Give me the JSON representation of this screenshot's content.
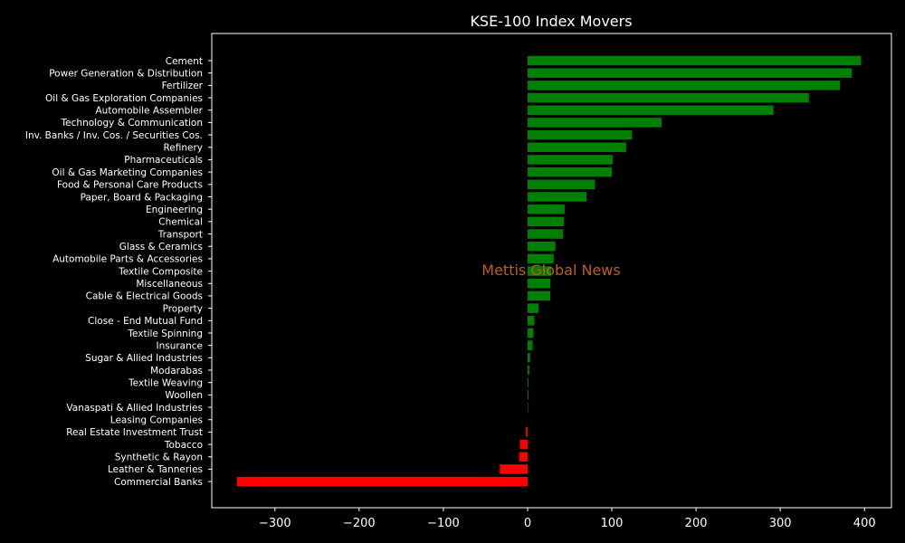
{
  "chart_data": {
    "type": "bar",
    "orientation": "horizontal",
    "title": "KSE-100 Index Movers",
    "xlabel": "",
    "ylabel": "",
    "watermark": "Mettis Global News",
    "xlim": [
      -375,
      432
    ],
    "xticks": [
      -300,
      -200,
      -100,
      0,
      100,
      200,
      300,
      400
    ],
    "xtick_labels": [
      "−300",
      "−200",
      "−100",
      "0",
      "100",
      "200",
      "300",
      "400"
    ],
    "grid": false,
    "legend": "none",
    "colors": {
      "background": "#000000",
      "axes_face": "#000000",
      "axes_edge": "#ffffff",
      "text": "#ffffff",
      "positive": "#008000",
      "negative": "#ff0000",
      "watermark": "#b8601c"
    },
    "categories": [
      "Cement",
      "Power Generation & Distribution",
      "Fertilizer",
      "Oil & Gas Exploration Companies",
      "Automobile Assembler",
      "Technology & Communication",
      "Inv. Banks / Inv. Cos. / Securities Cos.",
      "Refinery",
      "Pharmaceuticals",
      "Oil & Gas Marketing Companies",
      "Food & Personal Care Products",
      "Paper, Board & Packaging",
      "Engineering",
      "Chemical",
      "Transport",
      "Glass & Ceramics",
      "Automobile Parts & Accessories",
      "Textile Composite",
      "Miscellaneous",
      "Cable & Electrical Goods",
      "Property",
      "Close - End Mutual Fund",
      "Textile Spinning",
      "Insurance",
      "Sugar & Allied Industries",
      "Modarabas",
      "Textile Weaving",
      "Woollen",
      "Vanaspati & Allied Industries",
      "Leasing Companies",
      "Real Estate Investment Trust",
      "Tobacco",
      "Synthetic & Rayon",
      "Leather & Tanneries",
      "Commercial Banks"
    ],
    "values": [
      396,
      385,
      371,
      334,
      292,
      159,
      124,
      117,
      101,
      100,
      80,
      70,
      44,
      43,
      42,
      33,
      31,
      28,
      27,
      27,
      13,
      8,
      7,
      6,
      3,
      2,
      1,
      1,
      0.5,
      0,
      -2,
      -9,
      -10,
      -33,
      -345
    ]
  }
}
